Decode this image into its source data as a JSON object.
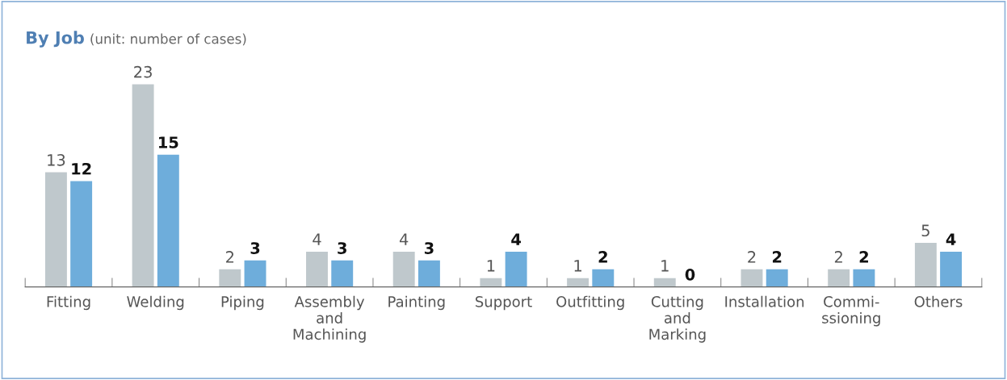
{
  "chart_data": {
    "type": "bar",
    "title": "By Job",
    "subtitle": "(unit: number of cases)",
    "categories": [
      "Fitting",
      "Welding",
      "Piping",
      "Assembly\nand\nMachining",
      "Painting",
      "Support",
      "Outfitting",
      "Cutting\nand\nMarking",
      "Installation",
      "Commi-\nssioning",
      "Others"
    ],
    "series": [
      {
        "color": "#bfc8cc",
        "values": [
          13,
          23,
          2,
          4,
          4,
          1,
          1,
          1,
          2,
          2,
          5
        ]
      },
      {
        "color": "#6eaddb",
        "values": [
          12,
          15,
          3,
          3,
          3,
          4,
          2,
          0,
          2,
          2,
          4
        ]
      }
    ],
    "data_labels": true,
    "tick_labels": "x",
    "grid": false,
    "legend": false
  }
}
